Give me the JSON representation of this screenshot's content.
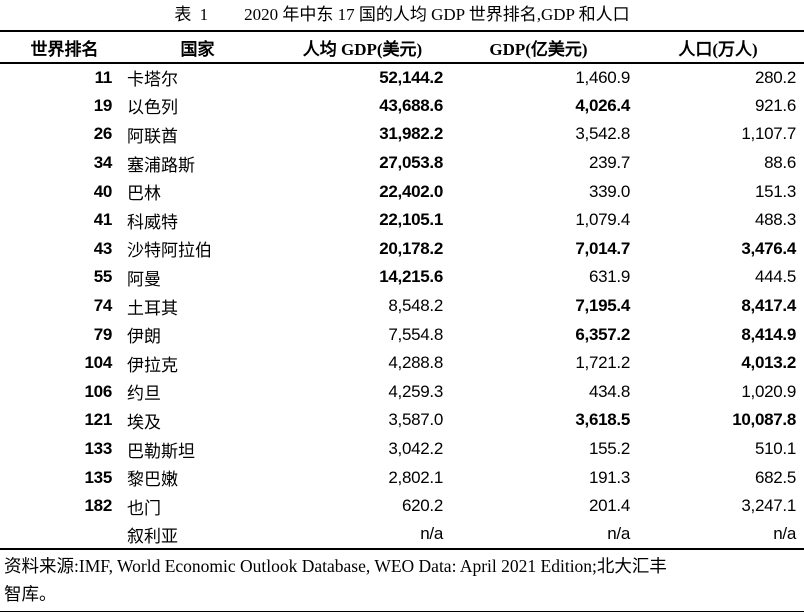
{
  "title": {
    "label": "表 1",
    "text": "2020 年中东 17 国的人均 GDP 世界排名,GDP 和人口"
  },
  "table": {
    "columns": [
      "世界排名",
      "国家",
      "人均 GDP(美元)",
      "GDP(亿美元)",
      "人口(万人)"
    ],
    "rows": [
      {
        "rank": "11",
        "country": "卡塔尔",
        "pcgdp": "52,144.2",
        "pcgdp_bold": true,
        "gdp": "1,460.9",
        "gdp_bold": false,
        "pop": "280.2",
        "pop_bold": false
      },
      {
        "rank": "19",
        "country": "以色列",
        "pcgdp": "43,688.6",
        "pcgdp_bold": true,
        "gdp": "4,026.4",
        "gdp_bold": true,
        "pop": "921.6",
        "pop_bold": false
      },
      {
        "rank": "26",
        "country": "阿联酋",
        "pcgdp": "31,982.2",
        "pcgdp_bold": true,
        "gdp": "3,542.8",
        "gdp_bold": false,
        "pop": "1,107.7",
        "pop_bold": false
      },
      {
        "rank": "34",
        "country": "塞浦路斯",
        "pcgdp": "27,053.8",
        "pcgdp_bold": true,
        "gdp": "239.7",
        "gdp_bold": false,
        "pop": "88.6",
        "pop_bold": false
      },
      {
        "rank": "40",
        "country": "巴林",
        "pcgdp": "22,402.0",
        "pcgdp_bold": true,
        "gdp": "339.0",
        "gdp_bold": false,
        "pop": "151.3",
        "pop_bold": false
      },
      {
        "rank": "41",
        "country": "科威特",
        "pcgdp": "22,105.1",
        "pcgdp_bold": true,
        "gdp": "1,079.4",
        "gdp_bold": false,
        "pop": "488.3",
        "pop_bold": false
      },
      {
        "rank": "43",
        "country": "沙特阿拉伯",
        "pcgdp": "20,178.2",
        "pcgdp_bold": true,
        "gdp": "7,014.7",
        "gdp_bold": true,
        "pop": "3,476.4",
        "pop_bold": true
      },
      {
        "rank": "55",
        "country": "阿曼",
        "pcgdp": "14,215.6",
        "pcgdp_bold": true,
        "gdp": "631.9",
        "gdp_bold": false,
        "pop": "444.5",
        "pop_bold": false
      },
      {
        "rank": "74",
        "country": "土耳其",
        "pcgdp": "8,548.2",
        "pcgdp_bold": false,
        "gdp": "7,195.4",
        "gdp_bold": true,
        "pop": "8,417.4",
        "pop_bold": true
      },
      {
        "rank": "79",
        "country": "伊朗",
        "pcgdp": "7,554.8",
        "pcgdp_bold": false,
        "gdp": "6,357.2",
        "gdp_bold": true,
        "pop": "8,414.9",
        "pop_bold": true
      },
      {
        "rank": "104",
        "country": "伊拉克",
        "pcgdp": "4,288.8",
        "pcgdp_bold": false,
        "gdp": "1,721.2",
        "gdp_bold": false,
        "pop": "4,013.2",
        "pop_bold": true
      },
      {
        "rank": "106",
        "country": "约旦",
        "pcgdp": "4,259.3",
        "pcgdp_bold": false,
        "gdp": "434.8",
        "gdp_bold": false,
        "pop": "1,020.9",
        "pop_bold": false
      },
      {
        "rank": "121",
        "country": "埃及",
        "pcgdp": "3,587.0",
        "pcgdp_bold": false,
        "gdp": "3,618.5",
        "gdp_bold": true,
        "pop": "10,087.8",
        "pop_bold": true
      },
      {
        "rank": "133",
        "country": "巴勒斯坦",
        "pcgdp": "3,042.2",
        "pcgdp_bold": false,
        "gdp": "155.2",
        "gdp_bold": false,
        "pop": "510.1",
        "pop_bold": false
      },
      {
        "rank": "135",
        "country": "黎巴嫩",
        "pcgdp": "2,802.1",
        "pcgdp_bold": false,
        "gdp": "191.3",
        "gdp_bold": false,
        "pop": "682.5",
        "pop_bold": false
      },
      {
        "rank": "182",
        "country": "也门",
        "pcgdp": "620.2",
        "pcgdp_bold": false,
        "gdp": "201.4",
        "gdp_bold": false,
        "pop": "3,247.1",
        "pop_bold": false
      },
      {
        "rank": "",
        "country": "叙利亚",
        "pcgdp": "n/a",
        "pcgdp_bold": false,
        "gdp": "n/a",
        "gdp_bold": false,
        "pop": "n/a",
        "pop_bold": false
      }
    ]
  },
  "source": {
    "line1": "资料来源:IMF, World Economic Outlook Database, WEO Data: April 2021 Edition;北大汇丰",
    "line2": "智库。"
  }
}
